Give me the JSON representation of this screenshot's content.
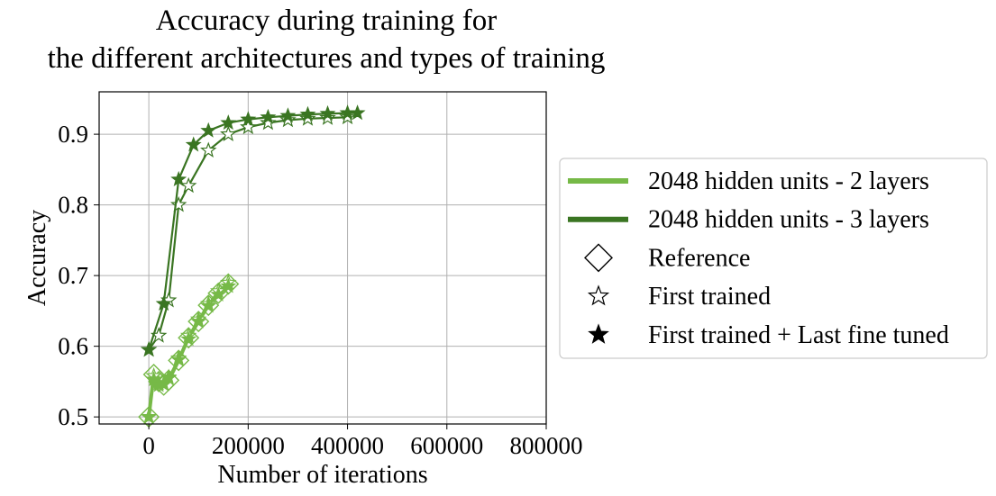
{
  "chart_data": {
    "type": "line",
    "title": [
      "Accuracy during training for",
      "the different architectures and types of training"
    ],
    "xlabel": "Number of iterations",
    "ylabel": "Accuracy",
    "xlim": [
      -100000,
      800000
    ],
    "ylim": [
      0.49,
      0.96
    ],
    "x_ticks": [
      0,
      200000,
      400000,
      600000,
      800000
    ],
    "x_tick_labels": [
      "0",
      "200000",
      "400000",
      "600000",
      "800000"
    ],
    "y_ticks": [
      0.5,
      0.6,
      0.7,
      0.8,
      0.9
    ],
    "y_tick_labels": [
      "0.5",
      "0.6",
      "0.7",
      "0.8",
      "0.9"
    ],
    "grid": true,
    "legend_position": "right",
    "colors": {
      "two_layers": "#76b947",
      "three_layers": "#3a7522"
    },
    "legend": [
      {
        "label": "2048 hidden units - 2 layers",
        "kind": "line",
        "color": "#76b947"
      },
      {
        "label": "2048 hidden units - 3 layers",
        "kind": "line",
        "color": "#3a7522"
      },
      {
        "label": "Reference",
        "kind": "marker",
        "marker": "diamond-open"
      },
      {
        "label": "First trained",
        "kind": "marker",
        "marker": "star-open"
      },
      {
        "label": "First trained + Last fine tuned",
        "kind": "marker",
        "marker": "star-filled"
      }
    ],
    "series": [
      {
        "name": "2048 hidden units - 2 layers",
        "variant": "Reference",
        "color": "#76b947",
        "marker": "diamond-open",
        "line_width": 4,
        "x": [
          0,
          10000,
          20000,
          30000,
          40000,
          60000,
          80000,
          100000,
          120000,
          140000,
          160000
        ],
        "y": [
          0.5,
          0.56,
          0.55,
          0.545,
          0.552,
          0.58,
          0.612,
          0.635,
          0.658,
          0.675,
          0.688
        ]
      },
      {
        "name": "2048 hidden units - 2 layers",
        "variant": "First trained",
        "color": "#76b947",
        "marker": "star-open",
        "line_width": 2.2,
        "x": [
          0,
          10000,
          20000,
          30000,
          40000,
          60000,
          80000,
          100000,
          120000,
          140000,
          160000
        ],
        "y": [
          0.5,
          0.558,
          0.548,
          0.547,
          0.556,
          0.583,
          0.615,
          0.638,
          0.66,
          0.678,
          0.69
        ]
      },
      {
        "name": "2048 hidden units - 2 layers",
        "variant": "First trained + Last fine tuned",
        "color": "#76b947",
        "marker": "star-filled",
        "line_width": 2.2,
        "x": [
          0,
          10000,
          20000,
          30000,
          40000,
          60000,
          80000,
          100000,
          120000,
          140000,
          160000
        ],
        "y": [
          0.5,
          0.553,
          0.545,
          0.546,
          0.555,
          0.581,
          0.61,
          0.635,
          0.657,
          0.673,
          0.685
        ]
      },
      {
        "name": "2048 hidden units - 3 layers",
        "variant": "First trained",
        "color": "#3a7522",
        "marker": "star-open",
        "line_width": 2.2,
        "x": [
          0,
          20000,
          40000,
          60000,
          80000,
          120000,
          160000,
          200000,
          240000,
          280000,
          320000,
          360000,
          400000
        ],
        "y": [
          0.595,
          0.615,
          0.665,
          0.8,
          0.827,
          0.877,
          0.9,
          0.91,
          0.916,
          0.92,
          0.922,
          0.923,
          0.924
        ]
      },
      {
        "name": "2048 hidden units - 3 layers",
        "variant": "First trained + Last fine tuned",
        "color": "#3a7522",
        "marker": "star-filled",
        "line_width": 2.2,
        "x": [
          0,
          30000,
          60000,
          90000,
          120000,
          160000,
          200000,
          240000,
          280000,
          320000,
          360000,
          400000,
          420000
        ],
        "y": [
          0.595,
          0.66,
          0.836,
          0.885,
          0.905,
          0.916,
          0.921,
          0.924,
          0.926,
          0.928,
          0.929,
          0.93,
          0.93
        ]
      }
    ]
  }
}
